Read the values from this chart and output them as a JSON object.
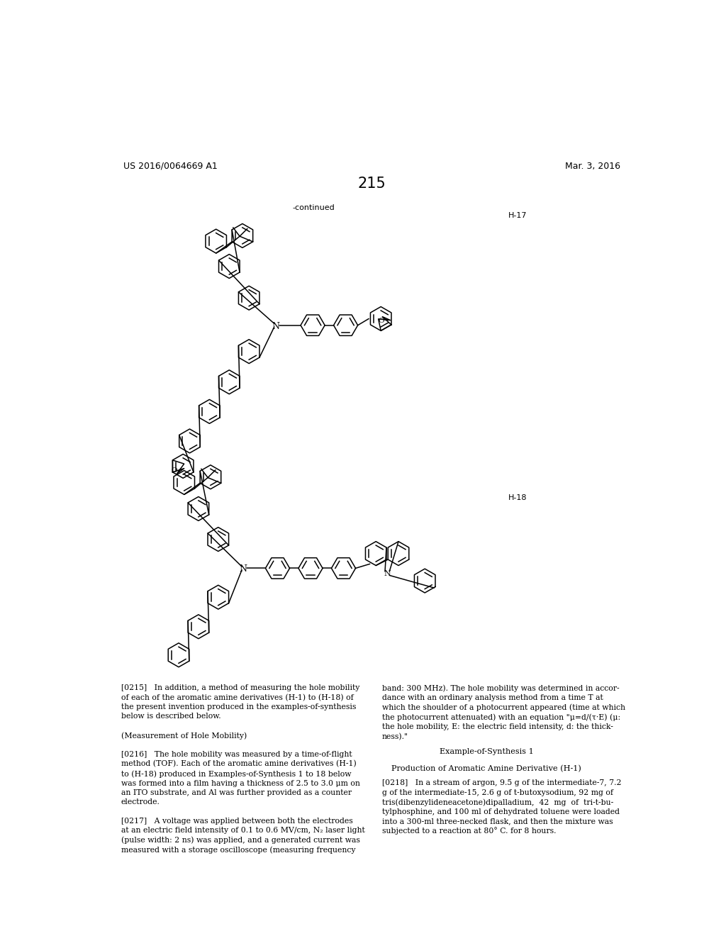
{
  "page_number": "215",
  "patent_number": "US 2016/0064669 A1",
  "patent_date": "Mar. 3, 2016",
  "continued_label": "-continued",
  "h17_label": "H-17",
  "h18_label": "H-18",
  "background_color": "#ffffff",
  "figsize": [
    10.24,
    13.2
  ],
  "dpi": 100,
  "left_col_text1": "[0215]",
  "left_col_body1": "   In addition, a method of measuring the hole mobility\nof each of the aromatic amine derivatives (H-1) to (H-18) of\nthe present invention produced in the examples-of-synthesis\nbelow is described below.",
  "left_col_subhead": "(Measurement of Hole Mobility)",
  "left_col_text2": "[0216]",
  "left_col_body2": "   The hole mobility was measured by a time-of-flight\nmethod (TOF). Each of the aromatic amine derivatives (H-1)\nto (H-18) produced in Examples-of-Synthesis 1 to 18 below\nwas formed into a film having a thickness of 2.5 to 3.0 μm on\nan ITO substrate, and Al was further provided as a counter\nelectrode.",
  "left_col_text3": "[0217]",
  "left_col_body3": "   A voltage was applied between both the electrodes\nat an electric field intensity of 0.1 to 0.6 MV/cm, N₂ laser light\n(pulse width: 2 ns) was applied, and a generated current was\nmeasured with a storage oscilloscope (measuring frequency",
  "right_col_body1": "band: 300 MHz). The hole mobility was determined in accor-\ndance with an ordinary analysis method from a time T at\nwhich the shoulder of a photocurrent appeared (time at which\nthe photocurrent attenuated) with an equation \"μ=d/(τ·E) (μ:\nthe hole mobility, E: the electric field intensity, d: the thick-\nness).\"",
  "right_col_center1": "Example-of-Synthesis 1",
  "right_col_center2": "Production of Aromatic Amine Derivative (H-1)",
  "right_col_text2": "[0218]",
  "right_col_body2": "   In a stream of argon, 9.5 g of the intermediate-7, 7.2\ng of the intermediate-15, 2.6 g of t-butoxysodium, 92 mg of\ntris(dibenzylideneacetone)dipalladium,  42  mg  of  tri-t-bu-\ntylphosphine, and 100 ml of dehydrated toluene were loaded\ninto a 300-ml three-necked flask, and then the mixture was\nsubjected to a reaction at 80° C. for 8 hours."
}
